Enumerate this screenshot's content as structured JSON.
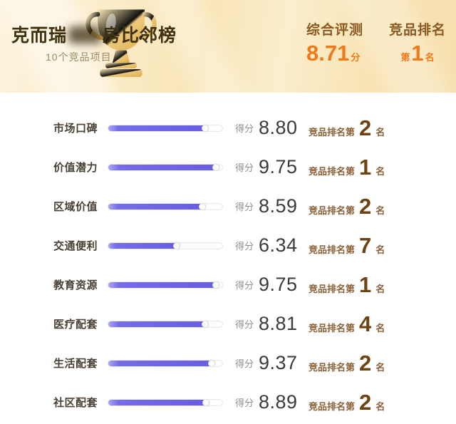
{
  "header": {
    "title_prefix": "克而瑞",
    "title_suffix": "房比邻榜",
    "subtitle": "10个竞品项目",
    "overall_label": "综合评测",
    "overall_value": "8.71",
    "overall_unit": "分",
    "rank_label": "竞品排名",
    "rank_prefix": "第",
    "rank_value": "1",
    "rank_unit": "名",
    "trophy_icon": "gold-trophy"
  },
  "rows": [
    {
      "label": "市场口碑",
      "score_label": "得分",
      "score": "8.80",
      "percent": 88,
      "rank_prefix": "竞品排名第",
      "rank": "2",
      "rank_unit": "名"
    },
    {
      "label": "价值潜力",
      "score_label": "得分",
      "score": "9.75",
      "percent": 97.5,
      "rank_prefix": "竞品排名第",
      "rank": "1",
      "rank_unit": "名"
    },
    {
      "label": "区域价值",
      "score_label": "得分",
      "score": "8.59",
      "percent": 85.9,
      "rank_prefix": "竞品排名第",
      "rank": "2",
      "rank_unit": "名"
    },
    {
      "label": "交通便利",
      "score_label": "得分",
      "score": "6.34",
      "percent": 63.4,
      "rank_prefix": "竞品排名第",
      "rank": "7",
      "rank_unit": "名"
    },
    {
      "label": "教育资源",
      "score_label": "得分",
      "score": "9.75",
      "percent": 97.5,
      "rank_prefix": "竞品排名第",
      "rank": "1",
      "rank_unit": "名"
    },
    {
      "label": "医疗配套",
      "score_label": "得分",
      "score": "8.81",
      "percent": 88.1,
      "rank_prefix": "竞品排名第",
      "rank": "4",
      "rank_unit": "名"
    },
    {
      "label": "生活配套",
      "score_label": "得分",
      "score": "9.37",
      "percent": 93.7,
      "rank_prefix": "竞品排名第",
      "rank": "2",
      "rank_unit": "名"
    },
    {
      "label": "社区配套",
      "score_label": "得分",
      "score": "8.89",
      "percent": 88.9,
      "rank_prefix": "竞品排名第",
      "rank": "2",
      "rank_unit": "名"
    }
  ],
  "colors": {
    "accent_orange": "#f0791a",
    "bar_purple": "#665de2",
    "rank_brown": "#6f4214",
    "header_label_brown": "#8a5a22",
    "header_bg_gold": "#f9e5b6"
  },
  "chart_data": {
    "type": "bar",
    "orientation": "horizontal",
    "title": "克而瑞房比邻榜",
    "subtitle": "10个竞品项目",
    "categories": [
      "市场口碑",
      "价值潜力",
      "区域价值",
      "交通便利",
      "教育资源",
      "医疗配套",
      "生活配套",
      "社区配套"
    ],
    "values": [
      8.8,
      9.75,
      8.59,
      6.34,
      9.75,
      8.81,
      9.37,
      8.89
    ],
    "ranks": [
      2,
      1,
      2,
      7,
      1,
      4,
      2,
      2
    ],
    "overall_score": 8.71,
    "overall_rank": 1,
    "xlim": [
      0,
      10
    ],
    "grid": false,
    "legend": false
  }
}
